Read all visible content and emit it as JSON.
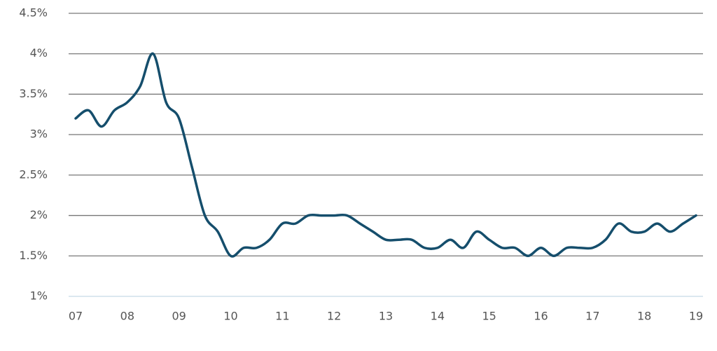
{
  "chart_data": {
    "type": "line",
    "x": [
      7,
      7.25,
      7.5,
      7.75,
      8,
      8.25,
      8.5,
      8.75,
      9,
      9.25,
      9.5,
      9.75,
      10,
      10.25,
      10.5,
      10.75,
      11,
      11.25,
      11.5,
      11.75,
      12,
      12.25,
      12.5,
      12.75,
      13,
      13.25,
      13.5,
      13.75,
      14,
      14.25,
      14.5,
      14.75,
      15,
      15.25,
      15.5,
      15.75,
      16,
      16.25,
      16.5,
      16.75,
      17,
      17.25,
      17.5,
      17.75,
      18,
      18.25,
      18.5,
      18.75,
      19
    ],
    "values": [
      3.2,
      3.3,
      3.1,
      3.3,
      3.4,
      3.6,
      4.0,
      3.4,
      3.2,
      2.6,
      2.0,
      1.8,
      1.5,
      1.6,
      1.6,
      1.7,
      1.9,
      1.9,
      2.0,
      2.0,
      2.0,
      2.0,
      1.9,
      1.8,
      1.7,
      1.7,
      1.7,
      1.6,
      1.6,
      1.7,
      1.6,
      1.8,
      1.7,
      1.6,
      1.6,
      1.5,
      1.6,
      1.5,
      1.6,
      1.6,
      1.6,
      1.7,
      1.9,
      1.8,
      1.8,
      1.9,
      1.8,
      1.9,
      2.0
    ],
    "color": "#154e6c",
    "xlim": [
      7,
      19
    ],
    "xticks": [
      {
        "value": 7,
        "label": "07"
      },
      {
        "value": 8,
        "label": "08"
      },
      {
        "value": 9,
        "label": "09"
      },
      10,
      11,
      12,
      13,
      14,
      15,
      16,
      17,
      18,
      19
    ],
    "ylim": [
      1,
      4.5
    ],
    "yticks": [
      {
        "value": 1,
        "label": "1%"
      },
      {
        "value": 1.5,
        "label": "1.5%"
      },
      {
        "value": 2,
        "label": "2%"
      },
      {
        "value": 2.5,
        "label": "2.5%"
      },
      {
        "value": 3,
        "label": "3%"
      },
      {
        "value": 3.5,
        "label": "3.5%"
      },
      {
        "value": 4,
        "label": "4%"
      },
      {
        "value": 4.5,
        "label": "4.5%"
      }
    ],
    "grid": true
  }
}
